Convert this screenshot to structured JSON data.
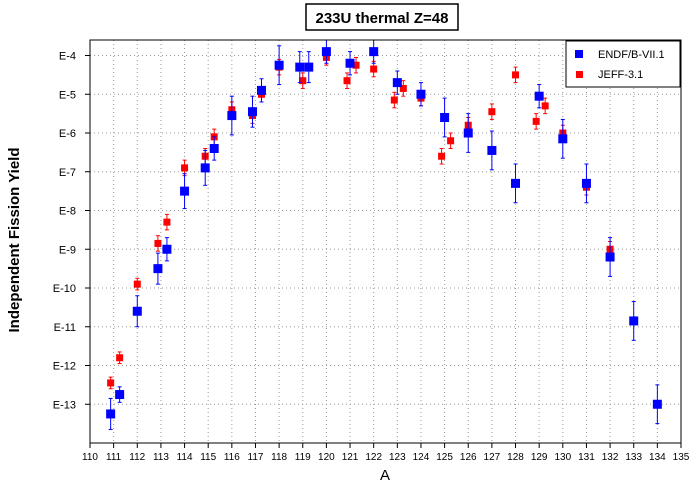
{
  "chart_data": {
    "type": "scatter",
    "title": "233U thermal Z=48",
    "xlabel": "A",
    "ylabel": "Independent Fission Yield",
    "y_scale": "log",
    "xlim": [
      110,
      135
    ],
    "ylim_exponent": [
      -14,
      -3.6
    ],
    "grid": true,
    "legend_position": "top-right",
    "x_ticks": [
      "110",
      "111",
      "112",
      "113",
      "114",
      "115",
      "116",
      "117",
      "118",
      "119",
      "120",
      "121",
      "122",
      "123",
      "124",
      "125",
      "126",
      "127",
      "128",
      "129",
      "130",
      "131",
      "132",
      "133",
      "134",
      "135"
    ],
    "y_ticks": [
      {
        "label": "E-4",
        "exp": -4
      },
      {
        "label": "E-5",
        "exp": -5
      },
      {
        "label": "E-6",
        "exp": -6
      },
      {
        "label": "E-7",
        "exp": -7
      },
      {
        "label": "E-8",
        "exp": -8
      },
      {
        "label": "E-9",
        "exp": -9
      },
      {
        "label": "E-10",
        "exp": -10
      },
      {
        "label": "E-11",
        "exp": -11
      },
      {
        "label": "E-12",
        "exp": -12
      },
      {
        "label": "E-13",
        "exp": -13
      }
    ],
    "series": [
      {
        "name": "ENDF/B-VII.1",
        "color": "#0000ff",
        "marker": "square",
        "points": [
          {
            "x": 111,
            "y_exp": -13.25,
            "err": 0.4
          },
          {
            "x": 111,
            "y_exp": -12.75,
            "err": 0.2
          },
          {
            "x": 112,
            "y_exp": -10.6,
            "err": 0.4
          },
          {
            "x": 113,
            "y_exp": -9.5,
            "err": 0.4
          },
          {
            "x": 113,
            "y_exp": -9.0,
            "err": 0.3
          },
          {
            "x": 114,
            "y_exp": -7.5,
            "err": 0.45
          },
          {
            "x": 115,
            "y_exp": -6.9,
            "err": 0.45
          },
          {
            "x": 115,
            "y_exp": -6.4,
            "err": 0.3
          },
          {
            "x": 116,
            "y_exp": -5.55,
            "err": 0.5
          },
          {
            "x": 117,
            "y_exp": -5.45,
            "err": 0.4
          },
          {
            "x": 117,
            "y_exp": -4.9,
            "err": 0.3
          },
          {
            "x": 118,
            "y_exp": -4.25,
            "err": 0.5
          },
          {
            "x": 119,
            "y_exp": -4.3,
            "err": 0.4
          },
          {
            "x": 119,
            "y_exp": -4.3,
            "err": 0.4
          },
          {
            "x": 120,
            "y_exp": -3.9,
            "err": 0.3
          },
          {
            "x": 121,
            "y_exp": -4.2,
            "err": 0.3
          },
          {
            "x": 122,
            "y_exp": -3.9,
            "err": 0.3
          },
          {
            "x": 123,
            "y_exp": -4.7,
            "err": 0.3
          },
          {
            "x": 124,
            "y_exp": -5.0,
            "err": 0.3
          },
          {
            "x": 125,
            "y_exp": -5.6,
            "err": 0.5
          },
          {
            "x": 126,
            "y_exp": -6.0,
            "err": 0.5
          },
          {
            "x": 127,
            "y_exp": -6.45,
            "err": 0.5
          },
          {
            "x": 128,
            "y_exp": -7.3,
            "err": 0.5
          },
          {
            "x": 129,
            "y_exp": -5.05,
            "err": 0.3
          },
          {
            "x": 130,
            "y_exp": -6.15,
            "err": 0.5
          },
          {
            "x": 131,
            "y_exp": -7.3,
            "err": 0.5
          },
          {
            "x": 132,
            "y_exp": -9.2,
            "err": 0.5
          },
          {
            "x": 133,
            "y_exp": -10.85,
            "err": 0.5
          },
          {
            "x": 134,
            "y_exp": -13.0,
            "err": 0.5
          }
        ]
      },
      {
        "name": "JEFF-3.1",
        "color": "#ff0000",
        "marker": "square",
        "points": [
          {
            "x": 111,
            "y_exp": -12.45,
            "err": 0.15
          },
          {
            "x": 111,
            "y_exp": -11.8,
            "err": 0.15
          },
          {
            "x": 112,
            "y_exp": -9.9,
            "err": 0.15
          },
          {
            "x": 113,
            "y_exp": -8.85,
            "err": 0.2
          },
          {
            "x": 113,
            "y_exp": -8.3,
            "err": 0.2
          },
          {
            "x": 114,
            "y_exp": -6.9,
            "err": 0.2
          },
          {
            "x": 115,
            "y_exp": -6.6,
            "err": 0.2
          },
          {
            "x": 115,
            "y_exp": -6.1,
            "err": 0.2
          },
          {
            "x": 116,
            "y_exp": -5.4,
            "err": 0.2
          },
          {
            "x": 117,
            "y_exp": -5.55,
            "err": 0.2
          },
          {
            "x": 117,
            "y_exp": -5.0,
            "err": 0.2
          },
          {
            "x": 118,
            "y_exp": -4.3,
            "err": 0.2
          },
          {
            "x": 119,
            "y_exp": -4.65,
            "err": 0.2
          },
          {
            "x": 120,
            "y_exp": -4.05,
            "err": 0.2
          },
          {
            "x": 121,
            "y_exp": -4.65,
            "err": 0.2
          },
          {
            "x": 121,
            "y_exp": -4.25,
            "err": 0.2
          },
          {
            "x": 122,
            "y_exp": -4.35,
            "err": 0.2
          },
          {
            "x": 123,
            "y_exp": -5.15,
            "err": 0.2
          },
          {
            "x": 123,
            "y_exp": -4.85,
            "err": 0.2
          },
          {
            "x": 124,
            "y_exp": -5.1,
            "err": 0.2
          },
          {
            "x": 125,
            "y_exp": -6.6,
            "err": 0.2
          },
          {
            "x": 125,
            "y_exp": -6.2,
            "err": 0.2
          },
          {
            "x": 126,
            "y_exp": -5.8,
            "err": 0.2
          },
          {
            "x": 127,
            "y_exp": -5.45,
            "err": 0.2
          },
          {
            "x": 128,
            "y_exp": -4.5,
            "err": 0.2
          },
          {
            "x": 129,
            "y_exp": -5.7,
            "err": 0.2
          },
          {
            "x": 129,
            "y_exp": -5.3,
            "err": 0.2
          },
          {
            "x": 130,
            "y_exp": -6.0,
            "err": 0.2
          },
          {
            "x": 131,
            "y_exp": -7.4,
            "err": 0.2
          },
          {
            "x": 132,
            "y_exp": -9.0,
            "err": 0.2
          }
        ]
      }
    ]
  }
}
